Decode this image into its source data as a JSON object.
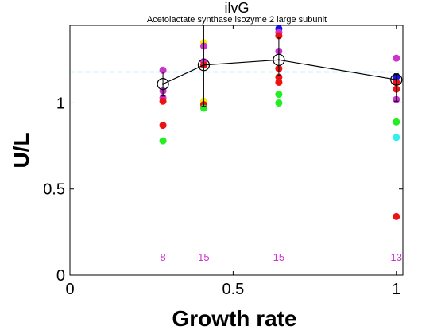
{
  "chart_data": {
    "type": "scatter",
    "title": "ilvG",
    "subtitle": "Acetolactate synthase isozyme 2 large subunit",
    "xlabel": "Growth rate",
    "ylabel": "U/L",
    "xlim": [
      0,
      1.02
    ],
    "ylim": [
      0,
      1.45
    ],
    "xticks": [
      0,
      0.5,
      1
    ],
    "xtick_labels": [
      "0",
      "0.5",
      "1"
    ],
    "yticks": [
      0,
      0.5,
      1
    ],
    "ytick_labels": [
      "0",
      "0.5",
      "1"
    ],
    "reference_line": {
      "y": 1.18,
      "color": "#33ccee",
      "style": "dashed"
    },
    "points": [
      {
        "x": 0.285,
        "y": 1.19,
        "color": "#cc33cc"
      },
      {
        "x": 0.285,
        "y": 1.07,
        "color": "#cc33cc"
      },
      {
        "x": 0.285,
        "y": 1.03,
        "color": "#cc33cc"
      },
      {
        "x": 0.285,
        "y": 1.01,
        "color": "#ee1111"
      },
      {
        "x": 0.285,
        "y": 0.87,
        "color": "#ee1111"
      },
      {
        "x": 0.285,
        "y": 0.78,
        "color": "#22ee22"
      },
      {
        "x": 0.41,
        "y": 1.35,
        "color": "#eeee00"
      },
      {
        "x": 0.41,
        "y": 1.33,
        "color": "#cc33cc"
      },
      {
        "x": 0.41,
        "y": 1.24,
        "color": "#cc33cc"
      },
      {
        "x": 0.41,
        "y": 1.22,
        "color": "#ee1111"
      },
      {
        "x": 0.41,
        "y": 1.01,
        "color": "#eeee00"
      },
      {
        "x": 0.41,
        "y": 0.99,
        "color": "#ee1111"
      },
      {
        "x": 0.41,
        "y": 0.97,
        "color": "#22ee22"
      },
      {
        "x": 0.64,
        "y": 1.43,
        "color": "#1111ee"
      },
      {
        "x": 0.64,
        "y": 1.41,
        "color": "#cc33cc"
      },
      {
        "x": 0.64,
        "y": 1.39,
        "color": "#ee1111"
      },
      {
        "x": 0.64,
        "y": 1.3,
        "color": "#cc33cc"
      },
      {
        "x": 0.64,
        "y": 1.2,
        "color": "#ee1111"
      },
      {
        "x": 0.64,
        "y": 1.15,
        "color": "#ee1111"
      },
      {
        "x": 0.64,
        "y": 1.12,
        "color": "#ee1111"
      },
      {
        "x": 0.64,
        "y": 1.05,
        "color": "#22ee22"
      },
      {
        "x": 0.64,
        "y": 1.0,
        "color": "#22ee22"
      },
      {
        "x": 1.0,
        "y": 1.26,
        "color": "#cc33cc"
      },
      {
        "x": 1.0,
        "y": 1.15,
        "color": "#1111ee"
      },
      {
        "x": 1.0,
        "y": 1.12,
        "color": "#ee1111"
      },
      {
        "x": 1.0,
        "y": 1.08,
        "color": "#ee1111"
      },
      {
        "x": 1.0,
        "y": 1.02,
        "color": "#cc33cc"
      },
      {
        "x": 1.0,
        "y": 0.89,
        "color": "#22ee22"
      },
      {
        "x": 1.0,
        "y": 0.8,
        "color": "#33eeee"
      },
      {
        "x": 1.0,
        "y": 0.34,
        "color": "#ee1111"
      }
    ],
    "mean_series": {
      "x": [
        0.285,
        0.41,
        0.64,
        1.0
      ],
      "y": [
        1.11,
        1.22,
        1.25,
        1.135
      ],
      "err_low": [
        1.04,
        0.98,
        1.16,
        1.01
      ],
      "err_high": [
        1.18,
        1.5,
        1.38,
        1.17
      ]
    },
    "counts": [
      {
        "x": 0.285,
        "label": "8"
      },
      {
        "x": 0.41,
        "label": "15"
      },
      {
        "x": 0.64,
        "label": "15"
      },
      {
        "x": 1.0,
        "label": "13"
      }
    ]
  }
}
